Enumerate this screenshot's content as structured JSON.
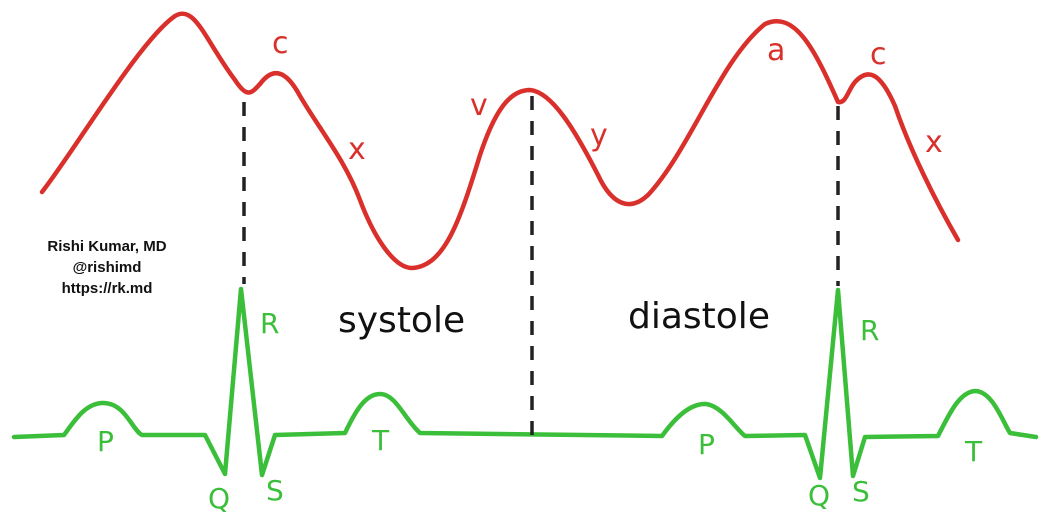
{
  "colors": {
    "venous_wave": "#d9302c",
    "ecg_wave": "#3bbf3a",
    "divider": "#222222",
    "text": "#111111"
  },
  "credit": {
    "name": "Rishi Kumar, MD",
    "handle": "@rishimd",
    "url": "https://rk.md"
  },
  "phases": {
    "systole": "systole",
    "diastole": "diastole"
  },
  "venous_labels": {
    "c1": "c",
    "x1": "x",
    "v": "v",
    "y": "y",
    "a": "a",
    "c2": "c",
    "x2": "x"
  },
  "ecg_labels": {
    "p1": "P",
    "q1": "Q",
    "r1": "R",
    "s1": "S",
    "t1": "T",
    "p2": "P",
    "q2": "Q",
    "r2": "R",
    "s2": "S",
    "t2": "T"
  }
}
